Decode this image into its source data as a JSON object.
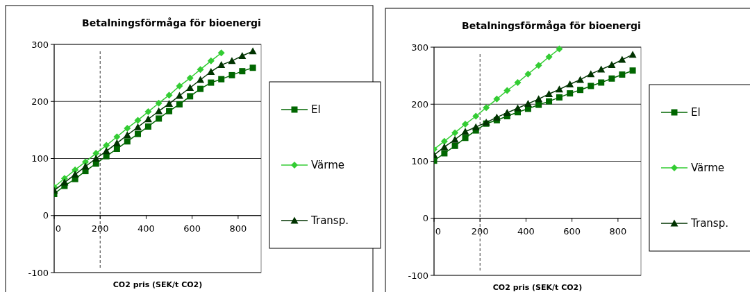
{
  "chart_data": [
    {
      "type": "line",
      "title": "Betalningsförmåga för bioenergi",
      "xlabel": "CO2 pris (SEK/t CO2)",
      "x": [
        0,
        45,
        91,
        136,
        182,
        227,
        273,
        318,
        364,
        409,
        455,
        500,
        545,
        591,
        636,
        682,
        727,
        773,
        818,
        864
      ],
      "series": [
        {
          "name": "El",
          "color": "#006600",
          "marker": "square",
          "values": [
            38,
            52,
            64,
            78,
            91,
            104,
            117,
            130,
            143,
            156,
            170,
            183,
            195,
            209,
            222,
            233,
            239,
            246,
            253,
            259
          ]
        },
        {
          "name": "Värme",
          "color": "#33cc33",
          "marker": "diamond",
          "values": [
            50,
            65,
            80,
            94,
            109,
            123,
            138,
            153,
            167,
            182,
            197,
            211,
            227,
            241,
            256,
            271,
            285,
            null,
            null,
            null
          ]
        },
        {
          "name": "Transp.",
          "color": "#003300",
          "marker": "triangle",
          "values": [
            44,
            58,
            72,
            86,
            100,
            113,
            127,
            141,
            155,
            169,
            183,
            196,
            210,
            224,
            238,
            252,
            264,
            271,
            280,
            288
          ]
        }
      ],
      "xlim": [
        0,
        900
      ],
      "xticks": [
        0,
        200,
        400,
        600,
        800
      ],
      "ylim": [
        -100,
        300
      ],
      "yticks": [
        -100,
        0,
        100,
        200,
        300
      ],
      "grid": "y",
      "legend": "right",
      "ref_lines": [
        {
          "axis": "x",
          "value": 200,
          "color": "#000000",
          "line_style": "dashed"
        }
      ]
    },
    {
      "type": "line",
      "title": "Betalningsförmåga för bioenergi",
      "xlabel": "CO2 pris (SEK/t CO2)",
      "x": [
        0,
        45,
        91,
        136,
        182,
        227,
        273,
        318,
        364,
        409,
        455,
        500,
        545,
        591,
        636,
        682,
        727,
        773,
        818,
        864
      ],
      "series": [
        {
          "name": "El",
          "color": "#006600",
          "marker": "square",
          "values": [
            101,
            114,
            127,
            141,
            154,
            166,
            172,
            179,
            186,
            192,
            199,
            205,
            212,
            219,
            225,
            232,
            238,
            245,
            252,
            259
          ]
        },
        {
          "name": "Värme",
          "color": "#33cc33",
          "marker": "diamond",
          "values": [
            121,
            135,
            150,
            165,
            179,
            194,
            209,
            224,
            238,
            253,
            268,
            283,
            297,
            null,
            null,
            null,
            null,
            null,
            null,
            null
          ]
        },
        {
          "name": "Transp.",
          "color": "#003300",
          "marker": "triangle",
          "values": [
            111,
            125,
            138,
            152,
            160,
            168,
            177,
            185,
            193,
            201,
            209,
            218,
            226,
            235,
            243,
            253,
            261,
            269,
            278,
            287
          ]
        }
      ],
      "xlim": [
        0,
        900
      ],
      "xticks": [
        0,
        200,
        400,
        600,
        800
      ],
      "ylim": [
        -100,
        300
      ],
      "yticks": [
        -100,
        0,
        100,
        200,
        300
      ],
      "grid": "y",
      "legend": "right",
      "ref_lines": [
        {
          "axis": "x",
          "value": 200,
          "color": "#000000",
          "line_style": "dashed"
        }
      ]
    }
  ]
}
